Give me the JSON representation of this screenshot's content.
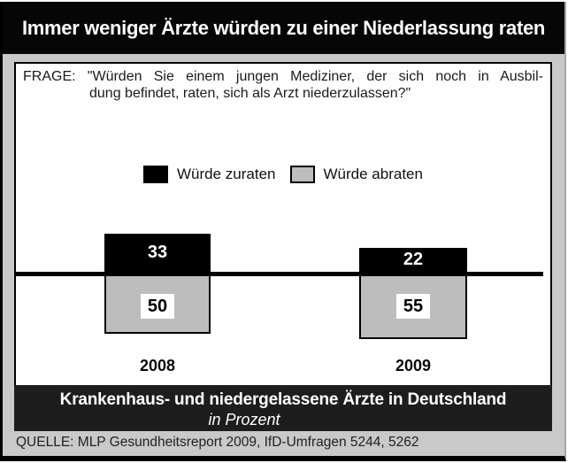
{
  "title": "Immer weniger Ärzte würden zu einer Niederlassung raten",
  "question": {
    "prefix": "FRAGE:",
    "line1": "\"Würden Sie einem jungen Mediziner, der sich noch in Ausbil-",
    "line2": "dung befindet, raten, sich als Arzt niederzulassen?\""
  },
  "chart_data": {
    "type": "bar",
    "categories": [
      "2008",
      "2009"
    ],
    "series": [
      {
        "name": "Würde zuraten",
        "values": [
          33,
          22
        ],
        "color": "#000000",
        "position": "above-baseline"
      },
      {
        "name": "Würde abraten",
        "values": [
          50,
          55
        ],
        "color": "#bdbdbd",
        "position": "below-baseline"
      }
    ],
    "unit": "Prozent",
    "legend_position": "top-center",
    "baseline_axis": true,
    "grid": false
  },
  "footer": {
    "line1": "Krankenhaus- und niedergelassene Ärzte in Deutschland",
    "line2": "in Prozent"
  },
  "source": "QUELLE: MLP Gesundheitsreport 2009, IfD-Umfragen 5244, 5262",
  "colors": {
    "panel": "#c9c9c9",
    "title_bg": "#060606",
    "footer_bg": "#1d1d1d",
    "bar_black": "#000000",
    "bar_gray": "#bdbdbd"
  }
}
